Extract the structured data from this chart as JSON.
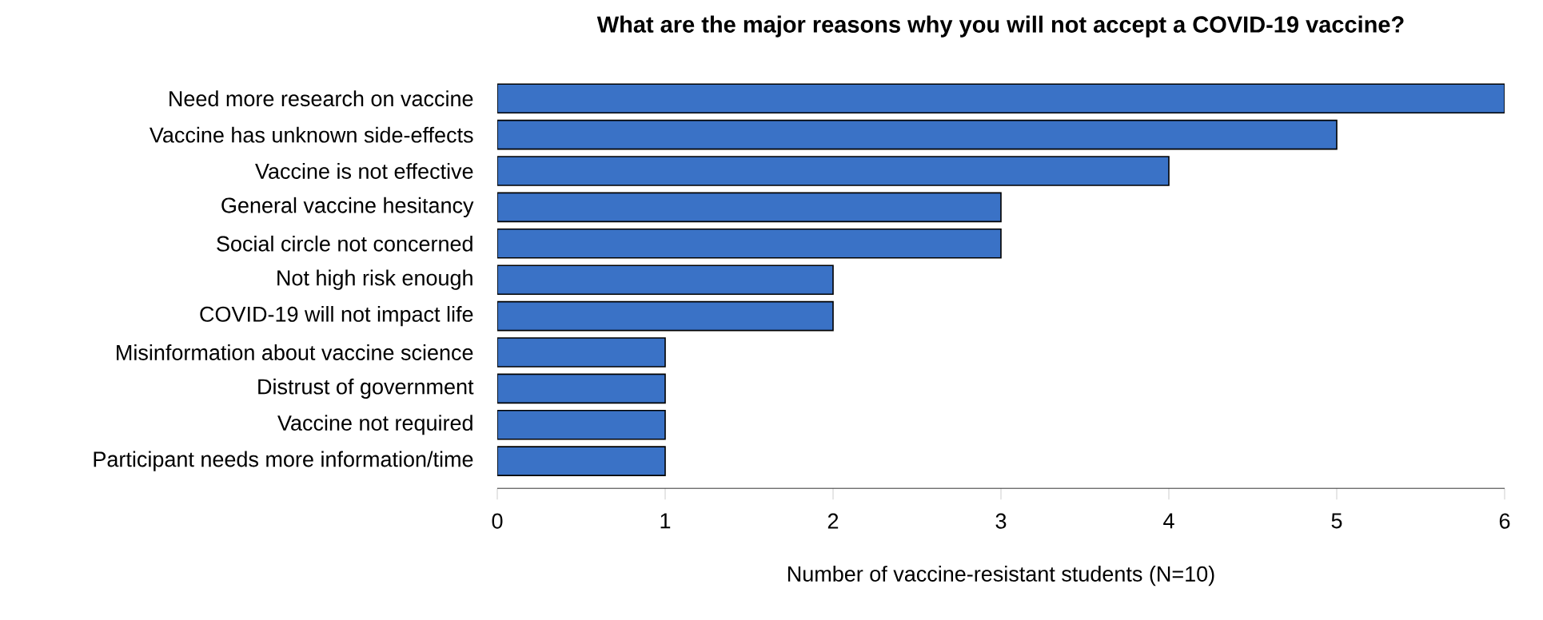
{
  "chart_data": {
    "type": "bar",
    "orientation": "horizontal",
    "title": "What are the major reasons why you will not accept a COVID-19 vaccine?",
    "xlabel": "Number of vaccine-resistant students (N=10)",
    "categories": [
      "Need more research on vaccine",
      "Vaccine has unknown side-effects",
      "Vaccine is not effective",
      "General vaccine hesitancy",
      "Social circle not concerned",
      "Not high risk enough",
      "COVID-19 will not impact life",
      "Misinformation about vaccine science",
      "Distrust of government",
      "Vaccine not required",
      "Participant needs more information/time"
    ],
    "values": [
      6,
      5,
      4,
      3,
      3,
      2,
      2,
      1,
      1,
      1,
      1
    ],
    "color": "#3a72c6",
    "xlim": [
      0,
      6
    ],
    "xticks": [
      0,
      1,
      2,
      3,
      4,
      5,
      6
    ]
  }
}
